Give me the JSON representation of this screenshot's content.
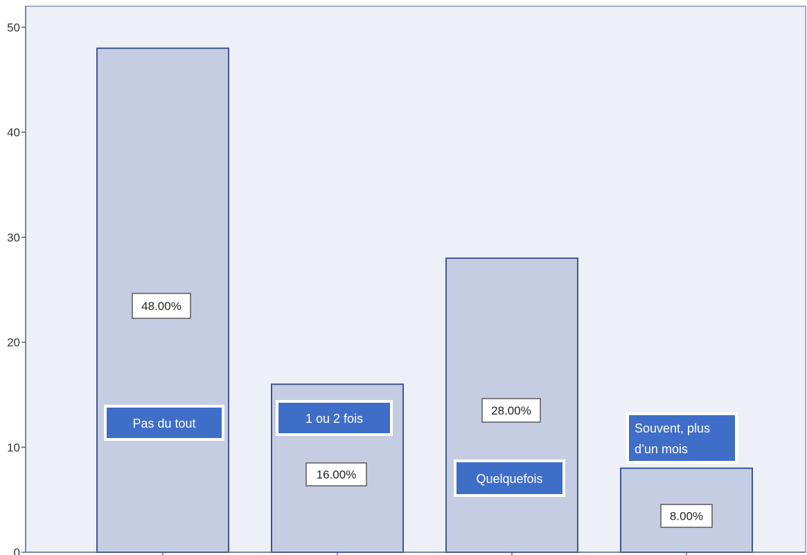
{
  "chart_data": {
    "type": "bar",
    "categories": [
      "Pas du tout",
      "1 ou 2 fois",
      "Quelquefois",
      "Souvent, plus d’un mois"
    ],
    "category_label_lines": [
      [
        "Pas du tout"
      ],
      [
        "1 ou 2 fois"
      ],
      [
        "Quelquefois"
      ],
      [
        "Souvent, plus",
        "d’un mois"
      ]
    ],
    "values": [
      48,
      16,
      28,
      8
    ],
    "data_labels": [
      "48.00%",
      "16.00%",
      "28.00%",
      "8.00%"
    ],
    "ylim": [
      0,
      52
    ],
    "yticks": [
      0,
      10,
      20,
      30,
      40,
      50
    ],
    "ytick_labels": [
      "0",
      "10",
      "20",
      "30",
      "40",
      "50"
    ],
    "xlabel": "",
    "ylabel": "",
    "title": "",
    "grid": false,
    "colors": {
      "plot_background": "#eef0f7",
      "bar_fill": "#c5cde3",
      "bar_stroke": "#3f568f",
      "axis": "#4d5f8c",
      "category_box_fill": "#3f6ec8",
      "category_box_text": "#ffffff",
      "data_label_border": "#5a5a5a"
    }
  }
}
